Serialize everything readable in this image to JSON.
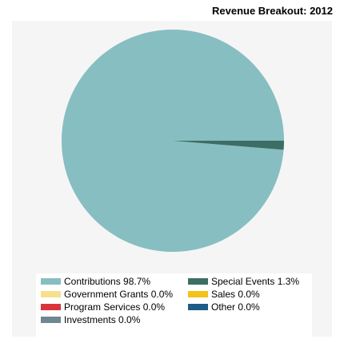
{
  "chart_data": {
    "type": "pie",
    "title": "Revenue Breakout: 2012",
    "slices": [
      {
        "label": "Contributions",
        "value": 98.7,
        "display": "Contributions 98.7%",
        "color": "#87bec2"
      },
      {
        "label": "Special Events",
        "value": 1.3,
        "display": "Special Events 1.3%",
        "color": "#3c6e63"
      },
      {
        "label": "Government Grants",
        "value": 0.0,
        "display": "Government Grants 0.0%",
        "color": "#f7e08c"
      },
      {
        "label": "Sales",
        "value": 0.0,
        "display": "Sales 0.0%",
        "color": "#f5c21b"
      },
      {
        "label": "Program Services",
        "value": 0.0,
        "display": "Program Services 0.0%",
        "color": "#d9343c"
      },
      {
        "label": "Other",
        "value": 0.0,
        "display": "Other 0.0%",
        "color": "#1e5b87"
      },
      {
        "label": "Investments",
        "value": 0.0,
        "display": "Investments 0.0%",
        "color": "#6e8791"
      }
    ],
    "legend_position": "bottom"
  }
}
